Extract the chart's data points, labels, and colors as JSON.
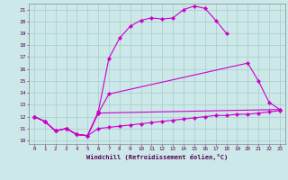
{
  "bg_color": "#cce8e8",
  "line_color": "#cc00cc",
  "grid_color": "#aacccc",
  "xlabel": "Windchill (Refroidissement éolien,°C)",
  "ylabel_values": [
    10,
    11,
    12,
    13,
    14,
    15,
    16,
    17,
    18,
    19,
    20,
    21
  ],
  "xlabel_values": [
    0,
    1,
    2,
    3,
    4,
    5,
    6,
    7,
    8,
    9,
    10,
    11,
    12,
    13,
    14,
    15,
    16,
    17,
    18,
    19,
    20,
    21,
    22,
    23
  ],
  "xmin": -0.5,
  "xmax": 23.5,
  "ymin": 9.7,
  "ymax": 21.5,
  "line_top_x": [
    0,
    1,
    2,
    3,
    4,
    5,
    6,
    7,
    8,
    9,
    10,
    11,
    12,
    13,
    14,
    15,
    16,
    17,
    18
  ],
  "line_top_y": [
    12.0,
    11.6,
    10.8,
    11.0,
    10.5,
    10.4,
    12.4,
    16.9,
    18.6,
    19.6,
    20.1,
    20.3,
    20.2,
    20.3,
    21.0,
    21.3,
    21.1,
    20.1,
    19.0
  ],
  "line_mid1_x": [
    0,
    1,
    2,
    3,
    4,
    5,
    6,
    7,
    20,
    21,
    22,
    23
  ],
  "line_mid1_y": [
    12.0,
    11.6,
    10.8,
    11.0,
    10.5,
    10.4,
    12.3,
    13.9,
    16.5,
    15.0,
    13.2,
    12.6
  ],
  "line_mid2_x": [
    0,
    1,
    2,
    3,
    4,
    5,
    6,
    23
  ],
  "line_mid2_y": [
    12.0,
    11.6,
    10.8,
    11.0,
    10.5,
    10.4,
    12.3,
    12.6
  ],
  "line_bot_x": [
    0,
    1,
    2,
    3,
    4,
    5,
    6,
    7,
    8,
    9,
    10,
    11,
    12,
    13,
    14,
    15,
    16,
    17,
    18,
    19,
    20,
    21,
    22,
    23
  ],
  "line_bot_y": [
    12.0,
    11.6,
    10.8,
    11.0,
    10.5,
    10.4,
    11.0,
    11.1,
    11.2,
    11.3,
    11.4,
    11.5,
    11.6,
    11.7,
    11.8,
    11.9,
    12.0,
    12.1,
    12.1,
    12.2,
    12.2,
    12.3,
    12.4,
    12.5
  ]
}
